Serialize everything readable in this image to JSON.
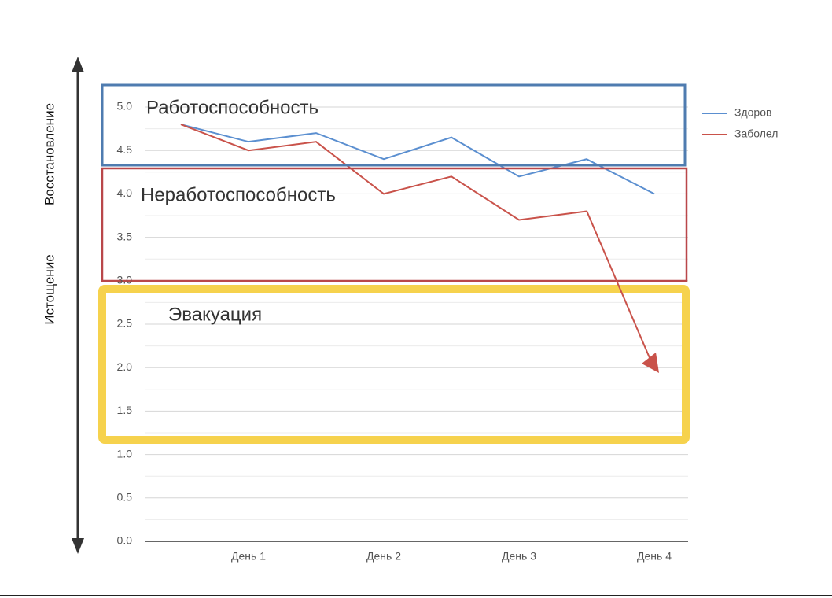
{
  "chart_data": {
    "type": "line",
    "categories": [
      null,
      "День 1",
      null,
      "День 2",
      null,
      "День 3",
      null,
      "День 4"
    ],
    "series": [
      {
        "name": "Здоров",
        "color": "#5b8fd0",
        "values": [
          4.8,
          4.6,
          4.7,
          4.4,
          4.65,
          4.2,
          4.4,
          4.0
        ]
      },
      {
        "name": "Заболел",
        "color": "#c9524a",
        "values": [
          4.8,
          4.5,
          4.6,
          4.0,
          4.2,
          3.7,
          3.8,
          null
        ]
      }
    ],
    "ylim": [
      0,
      5
    ],
    "yticks": [
      {
        "value": 0,
        "label": "0.0"
      },
      0.5,
      {
        "value": 1,
        "label": "1.0"
      },
      1.5,
      {
        "value": 2,
        "label": "2.0"
      },
      2.5,
      {
        "value": 3,
        "label": "3.0"
      },
      3.5,
      {
        "value": 4,
        "label": "4.0"
      },
      4.5,
      {
        "value": 5,
        "label": "5.0"
      }
    ],
    "grid": true,
    "legend": "right",
    "annotations": [
      "Работоспособность",
      "Неработоспособность",
      "Эвакуация"
    ],
    "side_labels": [
      "Восстановление",
      "Истощение"
    ]
  }
}
